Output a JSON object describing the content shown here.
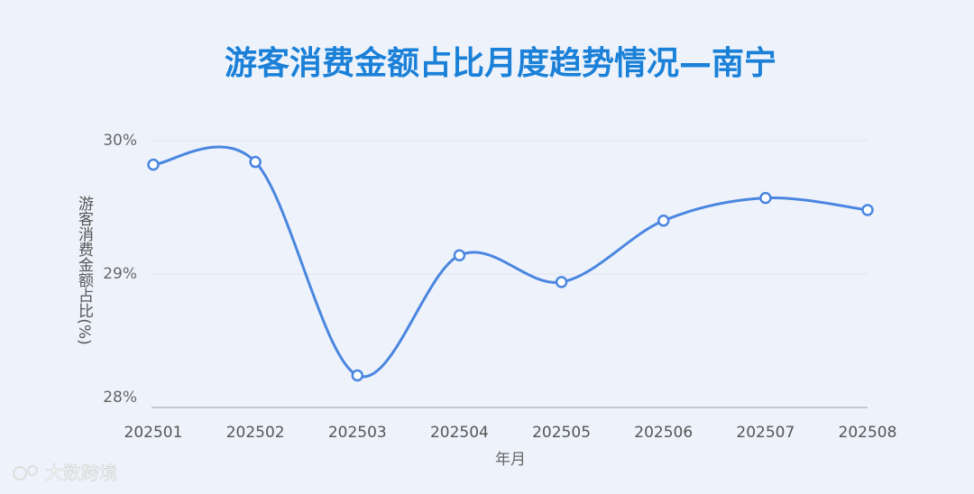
{
  "chart_data": {
    "type": "line",
    "title": "游客消费金额占比月度趋势情况—南宁",
    "x_label": "年月",
    "y_label": "游客消费金额占比(%)",
    "categories": [
      "202501",
      "202502",
      "202503",
      "202504",
      "202505",
      "202506",
      "202507",
      "202508"
    ],
    "series": [
      {
        "name": "游客消费金额占比",
        "color": "#4a86e0",
        "values": [
          29.82,
          29.84,
          28.24,
          29.14,
          28.94,
          29.4,
          29.57,
          29.48
        ]
      }
    ],
    "ylim": [
      28,
      30
    ],
    "yticks": [
      {
        "value": 28,
        "label": "28%"
      },
      {
        "value": 29,
        "label": "29%"
      },
      {
        "value": 30,
        "label": "30%"
      }
    ],
    "grid": true,
    "smooth": true
  },
  "watermark": "大数跨境"
}
